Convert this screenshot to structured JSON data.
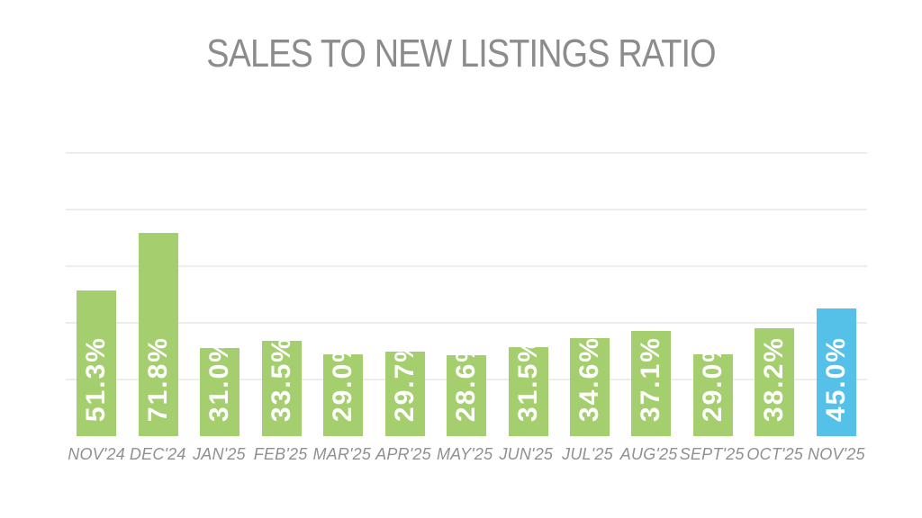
{
  "page": {
    "background": "#FFFFFF"
  },
  "chart_data": {
    "type": "bar",
    "title": "SALES TO NEW LISTINGS RATIO",
    "categories": [
      "NOV'24",
      "DEC'24",
      "JAN'25",
      "FEB'25",
      "MAR'25",
      "APR'25",
      "MAY'25",
      "JUN'25",
      "JUL'25",
      "AUG'25",
      "SEPT'25",
      "OCT'25",
      "NOV'25"
    ],
    "values": [
      51.3,
      71.8,
      31.0,
      33.5,
      29.0,
      29.7,
      28.6,
      31.5,
      34.6,
      37.1,
      29.0,
      38.2,
      45.0
    ],
    "value_labels": [
      "51.3%",
      "71.8%",
      "31.0%",
      "33.5%",
      "29.0%",
      "29.7%",
      "28.6%",
      "31.5%",
      "34.6%",
      "37.1%",
      "29.0%",
      "38.2%",
      "45.0%"
    ],
    "xlabel": "",
    "ylabel": "",
    "ylim": [
      0,
      100
    ],
    "gridline_step": 20,
    "grid": "horizontal",
    "legend": "none",
    "value_label_rotation": "vertical-bottom-up",
    "bar_color": "#A5CF6E",
    "highlight_bar_color": "#55C1E9",
    "highlight_index": 12,
    "value_label_color": "#FFFFFF",
    "title_color": "#8C8C8C",
    "category_label_color": "#909090",
    "gridline_color": "#EDEDED"
  }
}
